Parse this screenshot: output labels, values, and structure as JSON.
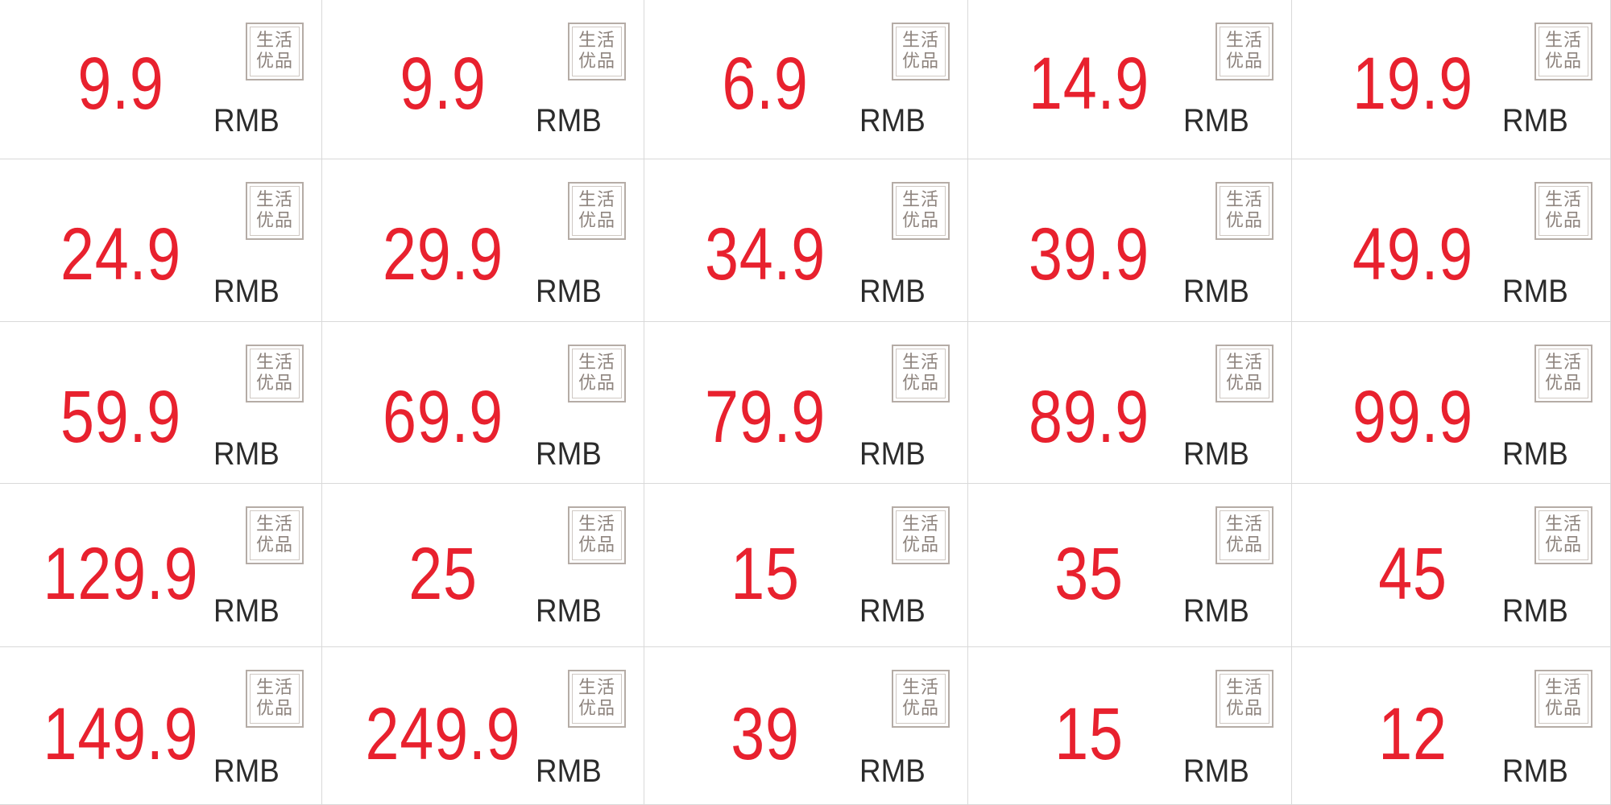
{
  "stamp": {
    "line1": "生活",
    "line2": "优品"
  },
  "colors": {
    "price": "#e8212e",
    "unit": "#2b2b2b",
    "stamp": "#8e847e",
    "grid": "#d9d9d9"
  },
  "tags": [
    {
      "price": "9.9",
      "unit": "RMB"
    },
    {
      "price": "9.9",
      "unit": "RMB"
    },
    {
      "price": "6.9",
      "unit": "RMB"
    },
    {
      "price": "14.9",
      "unit": "RMB"
    },
    {
      "price": "19.9",
      "unit": "RMB"
    },
    {
      "price": "24.9",
      "unit": "RMB"
    },
    {
      "price": "29.9",
      "unit": "RMB"
    },
    {
      "price": "34.9",
      "unit": "RMB"
    },
    {
      "price": "39.9",
      "unit": "RMB"
    },
    {
      "price": "49.9",
      "unit": "RMB"
    },
    {
      "price": "59.9",
      "unit": "RMB"
    },
    {
      "price": "69.9",
      "unit": "RMB"
    },
    {
      "price": "79.9",
      "unit": "RMB"
    },
    {
      "price": "89.9",
      "unit": "RMB"
    },
    {
      "price": "99.9",
      "unit": "RMB"
    },
    {
      "price": "129.9",
      "unit": "RMB"
    },
    {
      "price": "25",
      "unit": "RMB"
    },
    {
      "price": "15",
      "unit": "RMB"
    },
    {
      "price": "35",
      "unit": "RMB"
    },
    {
      "price": "45",
      "unit": "RMB"
    },
    {
      "price": "149.9",
      "unit": "RMB"
    },
    {
      "price": "249.9",
      "unit": "RMB"
    },
    {
      "price": "39",
      "unit": "RMB"
    },
    {
      "price": "15",
      "unit": "RMB"
    },
    {
      "price": "12",
      "unit": "RMB"
    }
  ]
}
